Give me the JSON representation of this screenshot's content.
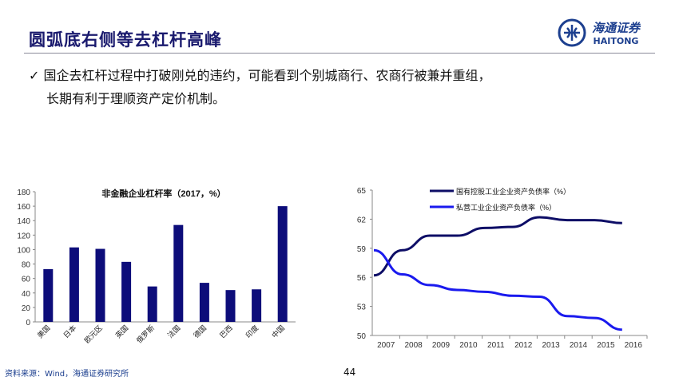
{
  "header": {
    "title": "圆弧底右侧等去杠杆高峰",
    "logo_cn": "海通证券",
    "logo_en": "HAITONG"
  },
  "bullet": {
    "line1": "✓ 国企去杠杆过程中打破刚兑的违约，可能看到个别城商行、农商行被兼并重组，",
    "line2": "长期有利于理顺资产定价机制。"
  },
  "footer": {
    "source": "资料来源：Wind，海通证券研究所",
    "page": "44"
  },
  "colors": {
    "bar": "#0d0d7a",
    "soe": "#0d0d66",
    "private": "#1a1aee",
    "title": "#1a1a6e"
  },
  "chart_data": [
    {
      "type": "bar",
      "title": "非金融企业杠杆率（2017，%）",
      "categories": [
        "美国",
        "日本",
        "欧元区",
        "英国",
        "俄罗斯",
        "法国",
        "德国",
        "巴西",
        "印度",
        "中国"
      ],
      "values": [
        73,
        103,
        101,
        83,
        49,
        134,
        54,
        44,
        45,
        160
      ],
      "ylim": [
        0,
        180
      ],
      "yticks": [
        0,
        20,
        40,
        60,
        80,
        100,
        120,
        140,
        160,
        180
      ]
    },
    {
      "type": "line",
      "x": [
        "2007",
        "2008",
        "2009",
        "2010",
        "2011",
        "2012",
        "2013",
        "2014",
        "2015",
        "2016"
      ],
      "series": [
        {
          "name": "国有控股工业企业资产负债率（%）",
          "values": [
            56.2,
            58.8,
            60.3,
            60.3,
            61.1,
            61.2,
            62.2,
            61.9,
            61.9,
            61.6
          ]
        },
        {
          "name": "私营工业企业资产负债率（%）",
          "values": [
            58.8,
            56.3,
            55.2,
            54.7,
            54.5,
            54.1,
            54.0,
            52.0,
            51.8,
            50.6
          ]
        }
      ],
      "ylim": [
        50,
        65
      ],
      "yticks": [
        50,
        53,
        56,
        59,
        62,
        65
      ],
      "legend": "top"
    }
  ]
}
